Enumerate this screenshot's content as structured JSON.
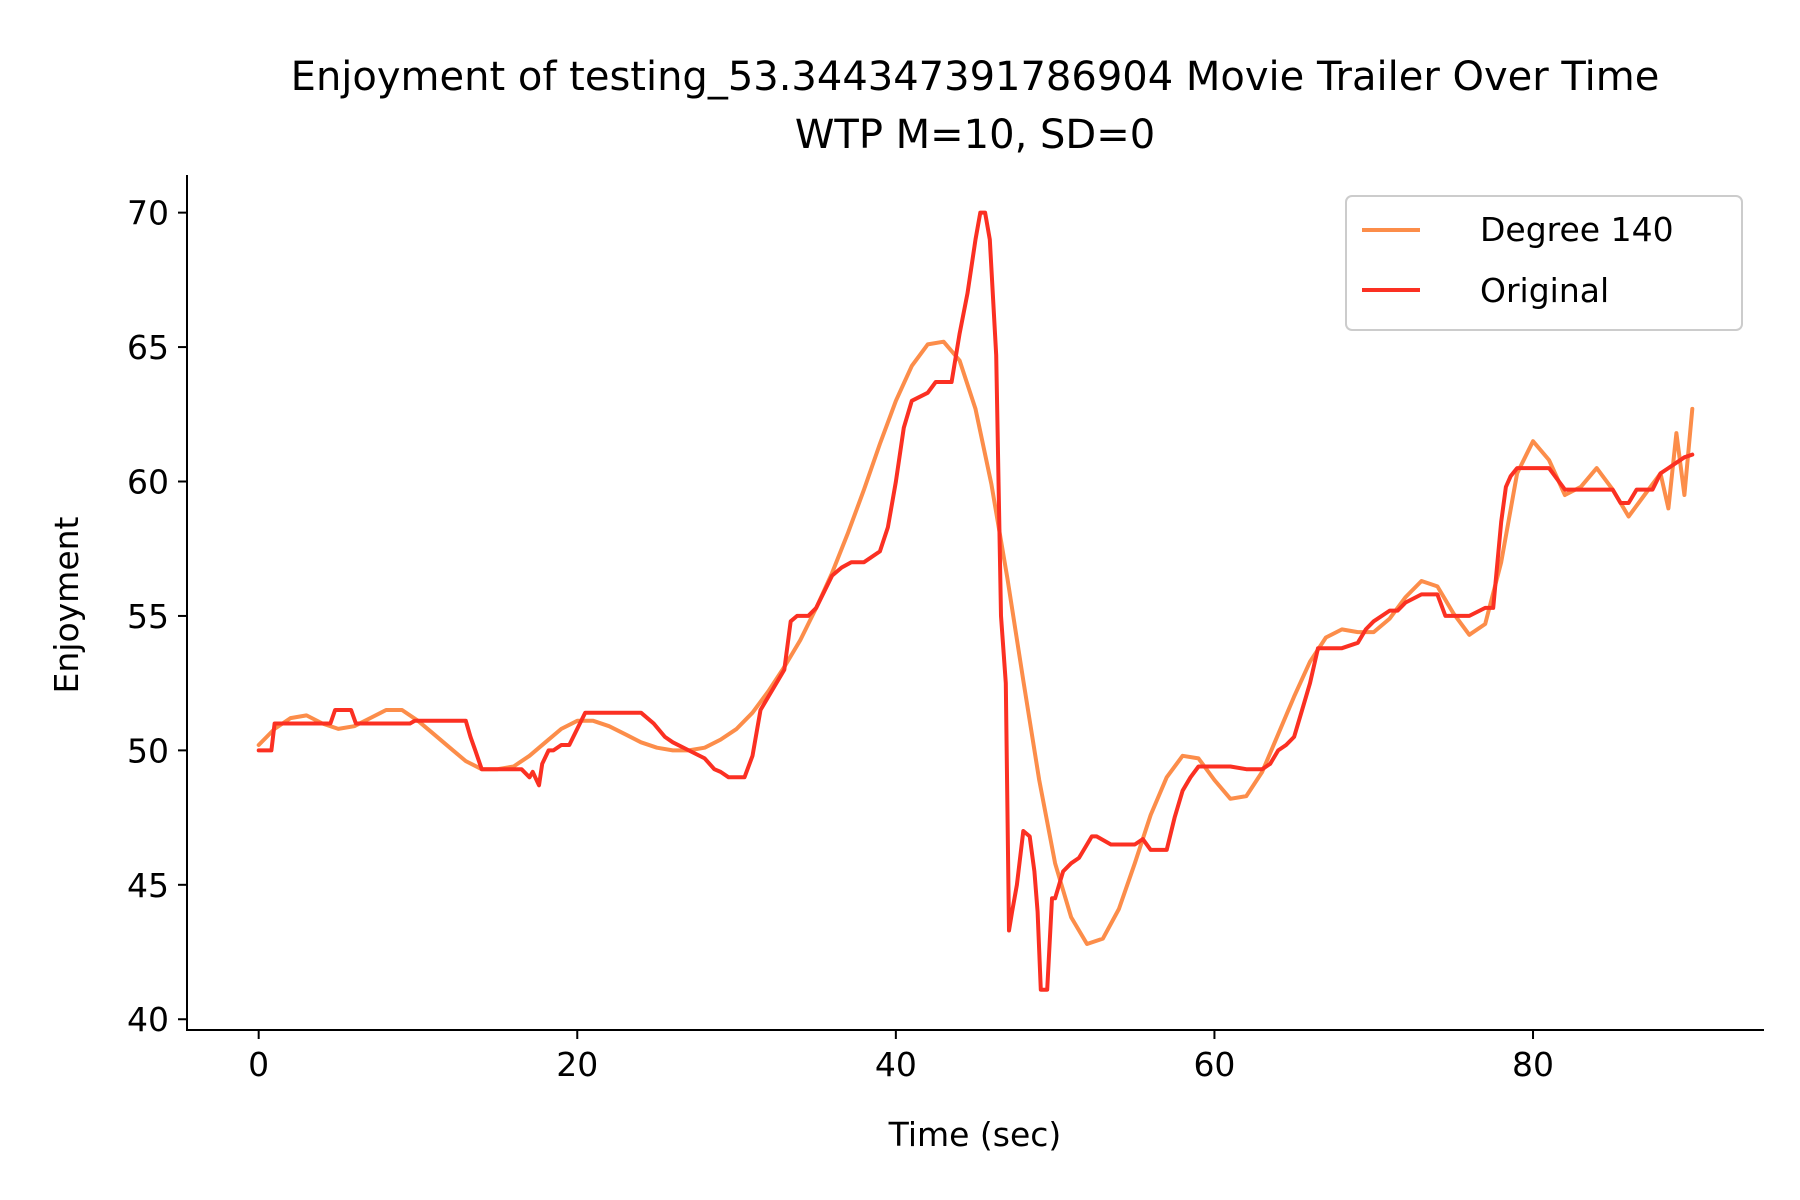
{
  "chart_data": {
    "type": "line",
    "title": "Enjoyment of testing_53.344347391786904 Movie Trailer Over Time",
    "subtitle": "WTP M=10, SD=0",
    "xlabel": "Time (sec)",
    "ylabel": "Enjoyment",
    "xlim": [
      -4.5,
      94.5
    ],
    "ylim": [
      39.6,
      71.4
    ],
    "xticks": [
      0,
      20,
      40,
      60,
      80
    ],
    "yticks": [
      40,
      45,
      50,
      55,
      60,
      65,
      70
    ],
    "grid": false,
    "legend_position": "top-right",
    "series": [
      {
        "name": "Degree 140",
        "color": "#fc8d4a",
        "x": [
          0,
          1,
          2,
          3,
          4,
          5,
          6,
          7,
          8,
          9,
          10,
          11,
          12,
          13,
          14,
          15,
          16,
          17,
          18,
          19,
          20,
          21,
          22,
          23,
          24,
          25,
          26,
          27,
          28,
          29,
          30,
          31,
          32,
          33,
          34,
          35,
          36,
          37,
          38,
          39,
          40,
          41,
          42,
          43,
          44,
          45,
          46,
          47,
          48,
          49,
          50,
          51,
          52,
          53,
          54,
          55,
          56,
          57,
          58,
          59,
          60,
          61,
          62,
          63,
          64,
          65,
          66,
          67,
          68,
          69,
          70,
          71,
          72,
          73,
          74,
          75,
          76,
          77,
          78,
          79,
          80,
          81,
          82,
          83,
          84,
          85,
          86,
          87,
          88,
          88.5,
          89,
          89.5,
          90
        ],
        "values": [
          50.2,
          50.8,
          51.2,
          51.3,
          51.0,
          50.8,
          50.9,
          51.2,
          51.5,
          51.5,
          51.1,
          50.6,
          50.1,
          49.6,
          49.3,
          49.3,
          49.4,
          49.8,
          50.3,
          50.8,
          51.1,
          51.1,
          50.9,
          50.6,
          50.3,
          50.1,
          50.0,
          50.0,
          50.1,
          50.4,
          50.8,
          51.4,
          52.2,
          53.1,
          54.1,
          55.3,
          56.6,
          58.1,
          59.7,
          61.4,
          63.0,
          64.3,
          65.1,
          65.2,
          64.5,
          62.7,
          59.9,
          56.4,
          52.6,
          48.9,
          45.8,
          43.8,
          42.8,
          43.0,
          44.1,
          45.8,
          47.6,
          49.0,
          49.8,
          49.7,
          48.9,
          48.2,
          48.3,
          49.2,
          50.6,
          52.0,
          53.3,
          54.2,
          54.5,
          54.4,
          54.4,
          54.9,
          55.7,
          56.3,
          56.1,
          55.1,
          54.3,
          54.7,
          57.0,
          60.3,
          61.5,
          60.8,
          59.5,
          59.8,
          60.5,
          59.7,
          58.7,
          59.5,
          60.3,
          59.0,
          61.8,
          59.5,
          62.7
        ]
      },
      {
        "name": "Original",
        "color": "#fb3022",
        "x": [
          0,
          0.8,
          1.0,
          4.5,
          4.8,
          5.8,
          6.1,
          9.5,
          9.8,
          13.0,
          13.3,
          13.6,
          14.0,
          15.0,
          16.0,
          16.5,
          17.0,
          17.2,
          17.6,
          17.8,
          18.2,
          18.5,
          19.0,
          19.5,
          20.5,
          21.0,
          22.0,
          23.0,
          24.0,
          24.8,
          25.5,
          26.0,
          27.0,
          28.0,
          28.6,
          29.0,
          29.5,
          30.5,
          31.0,
          31.5,
          32.0,
          33.0,
          33.4,
          33.8,
          34.5,
          35.0,
          36.0,
          36.6,
          37.2,
          38.0,
          39.0,
          39.5,
          40.0,
          40.5,
          41.0,
          42.0,
          42.5,
          43.0,
          43.5,
          44.0,
          44.5,
          45.0,
          45.3,
          45.6,
          45.9,
          46.3,
          46.6,
          46.9,
          47.1,
          47.3,
          47.6,
          48.0,
          48.4,
          48.7,
          48.9,
          49.1,
          49.5,
          49.8,
          50.0,
          50.5,
          51.0,
          51.5,
          52.0,
          52.3,
          52.6,
          53.5,
          54.0,
          55.0,
          55.5,
          56.0,
          57.0,
          57.5,
          58.0,
          58.5,
          59.0,
          60.0,
          61.0,
          62.0,
          63.0,
          63.5,
          64.0,
          64.5,
          65.0,
          65.5,
          66.0,
          66.5,
          67.0,
          68.0,
          69.0,
          69.5,
          70.0,
          71.0,
          71.5,
          72.0,
          73.0,
          74.0,
          74.5,
          75.0,
          75.5,
          76.0,
          77.0,
          77.5,
          78.0,
          78.3,
          78.6,
          79.0,
          80.0,
          81.0,
          82.0,
          83.0,
          84.0,
          85.0,
          85.5,
          86.0,
          86.5,
          87.0,
          87.5,
          88.0,
          88.5,
          89.0,
          89.5,
          90.0
        ],
        "values": [
          50.0,
          50.0,
          51.0,
          51.0,
          51.5,
          51.5,
          51.0,
          51.0,
          51.1,
          51.1,
          50.5,
          50.0,
          49.3,
          49.3,
          49.3,
          49.3,
          49.0,
          49.2,
          48.7,
          49.5,
          50.0,
          50.0,
          50.2,
          50.2,
          51.4,
          51.4,
          51.4,
          51.4,
          51.4,
          51.0,
          50.5,
          50.3,
          50.0,
          49.7,
          49.3,
          49.2,
          49.0,
          49.0,
          49.8,
          51.5,
          52.0,
          53.0,
          54.8,
          55.0,
          55.0,
          55.3,
          56.5,
          56.8,
          57.0,
          57.0,
          57.4,
          58.3,
          60.0,
          62.0,
          63.0,
          63.3,
          63.7,
          63.7,
          63.7,
          65.5,
          67.0,
          69.0,
          70.0,
          70.0,
          69.0,
          64.7,
          55.0,
          52.5,
          43.3,
          44.0,
          45.0,
          47.0,
          46.8,
          45.5,
          44.0,
          41.1,
          41.1,
          44.5,
          44.5,
          45.5,
          45.8,
          46.0,
          46.5,
          46.8,
          46.8,
          46.5,
          46.5,
          46.5,
          46.7,
          46.3,
          46.3,
          47.5,
          48.5,
          49.0,
          49.4,
          49.4,
          49.4,
          49.3,
          49.3,
          49.5,
          50.0,
          50.2,
          50.5,
          51.5,
          52.5,
          53.8,
          53.8,
          53.8,
          54.0,
          54.5,
          54.8,
          55.2,
          55.2,
          55.5,
          55.8,
          55.8,
          55.0,
          55.0,
          55.0,
          55.0,
          55.3,
          55.3,
          58.5,
          59.8,
          60.2,
          60.5,
          60.5,
          60.5,
          59.7,
          59.7,
          59.7,
          59.7,
          59.2,
          59.2,
          59.7,
          59.7,
          59.7,
          60.3,
          60.5,
          60.7,
          60.9,
          61.0
        ]
      }
    ]
  }
}
